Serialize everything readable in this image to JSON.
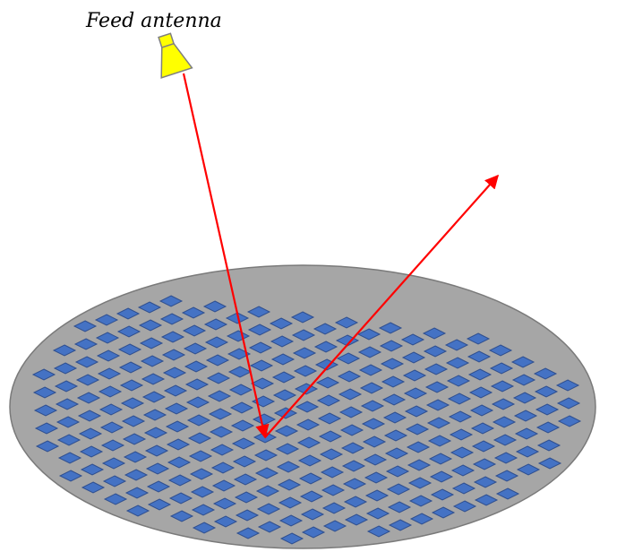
{
  "labels": {
    "feed_antenna": "Feed antenna"
  },
  "colors": {
    "background": "#ffffff",
    "surface_fill": "#a6a6a6",
    "surface_stroke": "#7a7a7a",
    "element_fill": "#4472c4",
    "element_stroke": "#2f4f8f",
    "feed_fill": "#ffff00",
    "feed_stroke": "#7f7f7f",
    "ray": "#ff0000"
  },
  "icons": {
    "feed": "horn-antenna-icon"
  }
}
